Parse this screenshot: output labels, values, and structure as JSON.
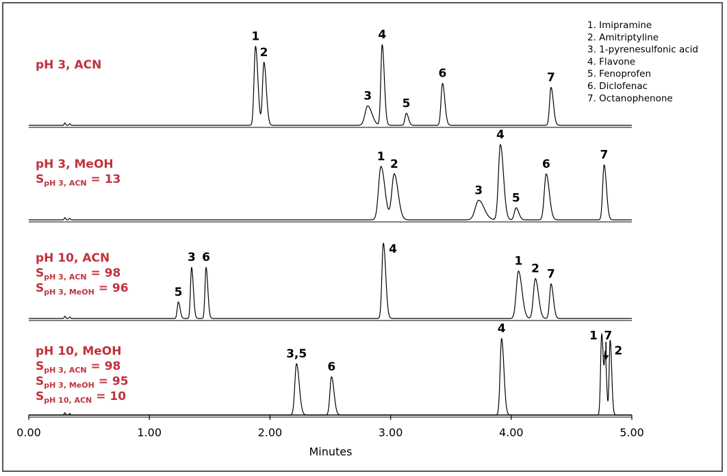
{
  "chart_data": {
    "type": "line",
    "xlabel": "Minutes",
    "xlim": [
      0,
      5
    ],
    "x_ticks": [
      "0.00",
      "1.00",
      "2.00",
      "3.00",
      "4.00",
      "5.00"
    ],
    "legend": [
      "1.  Imipramine",
      "2.  Amitriptyline",
      "3.  1-pyrenesulfonic acid",
      "4.  Flavone",
      "5.  Fenoprofen",
      "6.  Diclofenac",
      "7.  Octanophenone"
    ],
    "panels": [
      {
        "condition": [
          {
            "main": "pH 3, ACN"
          }
        ],
        "peaks": [
          {
            "label": "1",
            "rt": 1.88,
            "height": 0.98,
            "width": 0.012
          },
          {
            "label": "2",
            "rt": 1.95,
            "height": 0.78,
            "width": 0.012
          },
          {
            "label": "3",
            "rt": 2.81,
            "height": 0.24,
            "width": 0.022
          },
          {
            "label": "4",
            "rt": 2.93,
            "height": 1.0,
            "width": 0.011
          },
          {
            "label": "5",
            "rt": 3.13,
            "height": 0.15,
            "width": 0.011
          },
          {
            "label": "6",
            "rt": 3.43,
            "height": 0.52,
            "width": 0.012
          },
          {
            "label": "7",
            "rt": 4.33,
            "height": 0.47,
            "width": 0.012
          }
        ]
      },
      {
        "condition": [
          {
            "main": "pH 3, MeOH"
          },
          {
            "main": "S",
            "sub": "pH 3, ACN",
            "rest": " = 13"
          }
        ],
        "peaks": [
          {
            "label": "1",
            "rt": 2.92,
            "height": 0.71,
            "width": 0.02
          },
          {
            "label": "2",
            "rt": 3.03,
            "height": 0.61,
            "width": 0.02
          },
          {
            "label": "3",
            "rt": 3.73,
            "height": 0.26,
            "width": 0.028
          },
          {
            "label": "4",
            "rt": 3.91,
            "height": 1.0,
            "width": 0.016
          },
          {
            "label": "5",
            "rt": 4.04,
            "height": 0.16,
            "width": 0.014
          },
          {
            "label": "6",
            "rt": 4.29,
            "height": 0.61,
            "width": 0.016
          },
          {
            "label": "7",
            "rt": 4.77,
            "height": 0.73,
            "width": 0.012
          }
        ]
      },
      {
        "condition": [
          {
            "main": "pH 10, ACN"
          },
          {
            "main": "S",
            "sub": "pH 3, ACN",
            "rest": " = 98"
          },
          {
            "main": "S",
            "sub": "pH 3, MeOH",
            "rest": " = 96"
          }
        ],
        "peaks": [
          {
            "label": "5",
            "rt": 1.24,
            "height": 0.22,
            "width": 0.009
          },
          {
            "label": "3",
            "rt": 1.35,
            "height": 0.68,
            "width": 0.009
          },
          {
            "label": "6",
            "rt": 1.47,
            "height": 0.68,
            "width": 0.009
          },
          {
            "label": "4",
            "rt": 2.94,
            "height": 1.0,
            "width": 0.012
          },
          {
            "label": "1",
            "rt": 4.06,
            "height": 0.63,
            "width": 0.018
          },
          {
            "label": "2",
            "rt": 4.2,
            "height": 0.53,
            "width": 0.016
          },
          {
            "label": "7",
            "rt": 4.33,
            "height": 0.46,
            "width": 0.012
          }
        ]
      },
      {
        "condition": [
          {
            "main": "pH 10, MeOH"
          },
          {
            "main": "S",
            "sub": "pH 3, ACN",
            "rest": " = 98"
          },
          {
            "main": "S",
            "sub": "pH 3, MeOH",
            "rest": " = 95"
          },
          {
            "main": "S",
            "sub": "pH 10, ACN",
            "rest": " = 10"
          }
        ],
        "peaks": [
          {
            "label": "3,5",
            "rt": 2.22,
            "height": 0.67,
            "width": 0.014
          },
          {
            "label": "6",
            "rt": 2.51,
            "height": 0.5,
            "width": 0.013
          },
          {
            "label": "4",
            "rt": 3.92,
            "height": 1.0,
            "width": 0.012
          },
          {
            "label": "1",
            "rt": 4.75,
            "height": 1.06,
            "width": 0.009
          },
          {
            "label": "7",
            "rt": 4.78,
            "height": 0.7,
            "width": 0.007
          },
          {
            "label": "2",
            "rt": 4.82,
            "height": 0.98,
            "width": 0.008
          }
        ]
      }
    ]
  }
}
